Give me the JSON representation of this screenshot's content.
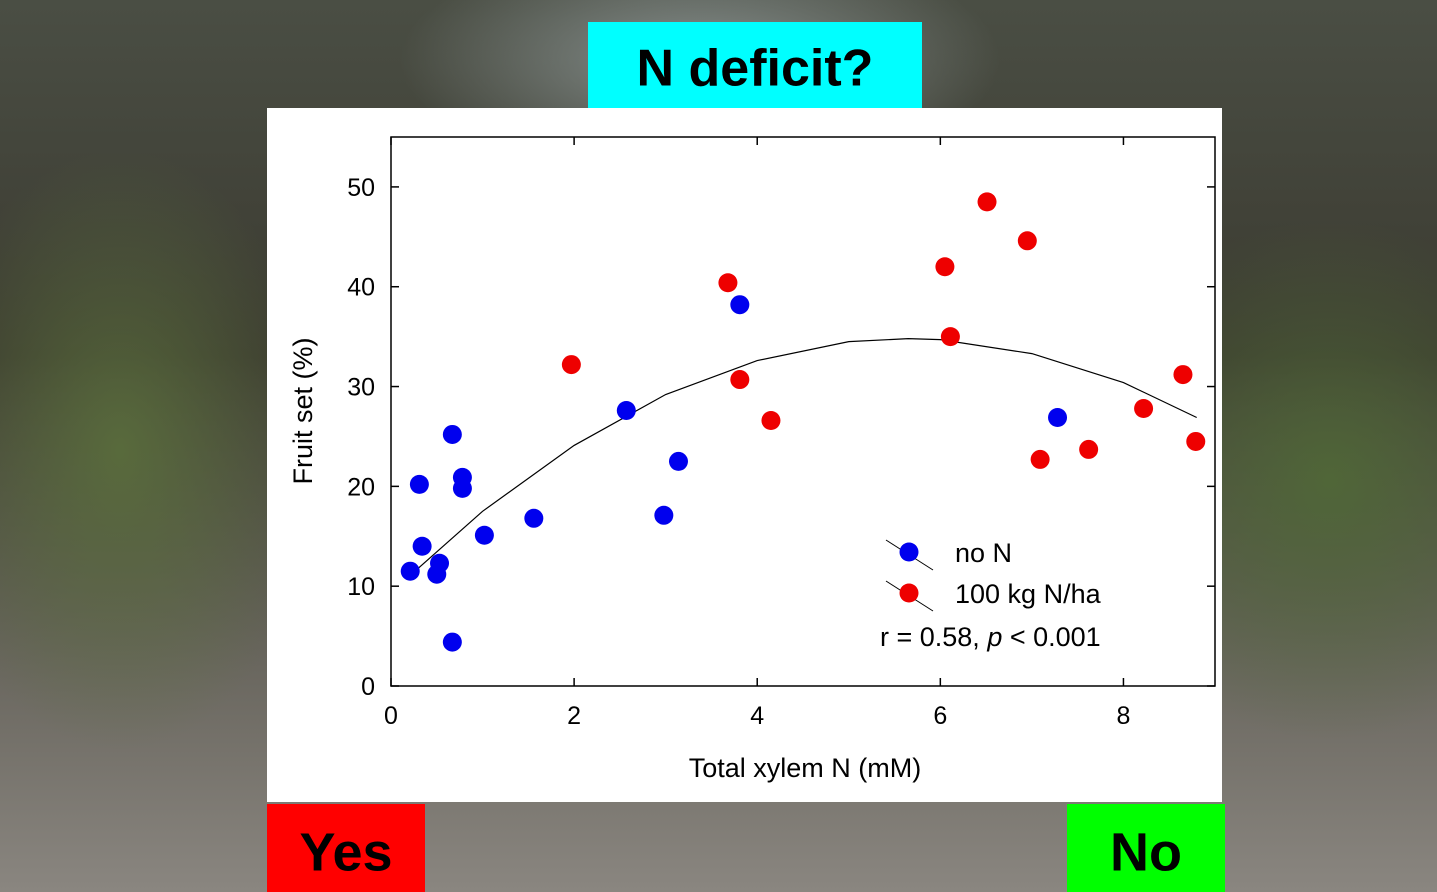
{
  "chart_data": {
    "type": "scatter",
    "title": "N deficit?",
    "x_label": "Total xylem N (mM)",
    "y_label": "Fruit set (%)",
    "xlim": [
      0,
      9
    ],
    "ylim": [
      0,
      55
    ],
    "xticks": [
      0,
      2,
      4,
      6,
      8
    ],
    "yticks": [
      0,
      10,
      20,
      30,
      40,
      50
    ],
    "series": [
      {
        "name": "no N",
        "color": "#0000ee",
        "x": [
          0.21,
          0.31,
          0.34,
          0.53,
          0.5,
          0.67,
          0.67,
          0.78,
          0.78,
          1.02,
          1.56,
          2.57,
          2.98,
          3.14,
          3.81,
          7.28
        ],
        "values": [
          11.5,
          20.2,
          14.0,
          12.3,
          11.2,
          25.2,
          4.4,
          20.9,
          19.8,
          15.1,
          16.8,
          27.6,
          17.1,
          22.5,
          38.2,
          26.9
        ]
      },
      {
        "name": "100 kg N/ha",
        "color": "#ee0000",
        "x": [
          1.97,
          3.68,
          3.81,
          4.15,
          6.05,
          6.11,
          6.51,
          6.95,
          7.09,
          7.62,
          8.22,
          8.65,
          8.79
        ],
        "values": [
          32.2,
          40.4,
          30.7,
          26.6,
          42.0,
          35.0,
          48.5,
          44.6,
          22.7,
          23.7,
          27.8,
          31.2,
          24.5
        ]
      }
    ],
    "fit": {
      "x": [
        0.2,
        1,
        2,
        3,
        4,
        5,
        5.65,
        6,
        7,
        8,
        8.8
      ],
      "values": [
        11.0,
        17.5,
        24.1,
        29.2,
        32.6,
        34.5,
        34.8,
        34.7,
        33.3,
        30.4,
        26.9
      ]
    },
    "annotation": [
      "r = 0.58, ",
      "p",
      " < 0.001"
    ]
  },
  "slide": {
    "left_label": "Yes",
    "right_label": "No"
  }
}
